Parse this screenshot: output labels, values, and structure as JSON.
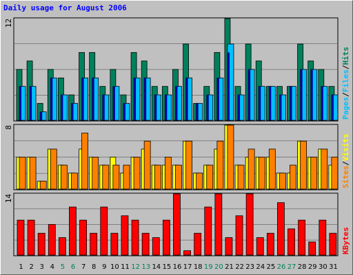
{
  "window": {
    "title": "Daily usage for August 2006"
  },
  "colors": {
    "hits": "#00805c",
    "files": "#00c0ff",
    "pages": "#00c0ff",
    "visits": "#ffff00",
    "sites": "#ff8000",
    "kbytes": "#ff0000",
    "weekend_label": "#00805c",
    "weekday_label": "#000000",
    "plot_bg": "#c0c0c0",
    "plot_border": "#000000"
  },
  "chart_data": [
    {
      "type": "bar",
      "panel": "top",
      "max_label": "12",
      "ylim": [
        0,
        12
      ],
      "legend": [
        "Pages",
        "/",
        "Files",
        "/",
        "Hits"
      ],
      "categories": [
        "1",
        "2",
        "3",
        "4",
        "5",
        "6",
        "7",
        "8",
        "9",
        "10",
        "11",
        "12",
        "13",
        "14",
        "15",
        "16",
        "17",
        "18",
        "19",
        "20",
        "21",
        "22",
        "23",
        "24",
        "25",
        "26",
        "27",
        "28",
        "29",
        "30",
        "31"
      ],
      "series": [
        {
          "name": "Hits",
          "values": [
            6,
            7,
            2,
            6,
            5,
            3,
            8,
            8,
            4,
            6,
            3,
            8,
            7,
            4,
            4,
            6,
            9,
            2,
            4,
            8,
            12,
            4,
            9,
            7,
            4,
            4,
            4,
            9,
            7,
            6,
            4
          ]
        },
        {
          "name": "Files",
          "values": [
            4,
            4,
            1,
            5,
            3,
            2,
            5,
            5,
            3,
            4,
            2,
            5,
            5,
            3,
            3,
            4,
            5,
            2,
            3,
            5,
            9,
            3,
            6,
            4,
            4,
            3,
            4,
            6,
            6,
            4,
            3
          ]
        },
        {
          "name": "Pages",
          "values": [
            4,
            4,
            1,
            5,
            3,
            2,
            5,
            5,
            3,
            4,
            2,
            5,
            5,
            3,
            3,
            4,
            5,
            2,
            3,
            5,
            8,
            3,
            6,
            4,
            4,
            3,
            4,
            6,
            6,
            4,
            3
          ]
        }
      ]
    },
    {
      "type": "bar",
      "panel": "middle",
      "max_label": "8",
      "ylim": [
        0,
        8
      ],
      "legend": [
        "Sites",
        "/",
        "Visits"
      ],
      "categories": [
        "1",
        "2",
        "3",
        "4",
        "5",
        "6",
        "7",
        "8",
        "9",
        "10",
        "11",
        "12",
        "13",
        "14",
        "15",
        "16",
        "17",
        "18",
        "19",
        "20",
        "21",
        "22",
        "23",
        "24",
        "25",
        "26",
        "27",
        "28",
        "29",
        "30",
        "31"
      ],
      "series": [
        {
          "name": "Visits",
          "values": [
            4,
            4,
            1,
            5,
            3,
            2,
            5,
            4,
            3,
            4,
            2,
            4,
            5,
            3,
            3,
            3,
            6,
            2,
            3,
            5,
            8,
            3,
            4,
            4,
            4,
            2,
            2,
            6,
            4,
            5,
            3
          ]
        },
        {
          "name": "Sites",
          "values": [
            4,
            4,
            1,
            5,
            3,
            2,
            7,
            4,
            3,
            3,
            3,
            4,
            6,
            3,
            4,
            3,
            6,
            2,
            3,
            6,
            8,
            3,
            5,
            4,
            5,
            2,
            3,
            6,
            4,
            5,
            4
          ]
        }
      ]
    },
    {
      "type": "bar",
      "panel": "bottom",
      "max_label": "14",
      "ylim": [
        0,
        14
      ],
      "legend": [
        "KBytes"
      ],
      "categories": [
        "1",
        "2",
        "3",
        "4",
        "5",
        "6",
        "7",
        "8",
        "9",
        "10",
        "11",
        "12",
        "13",
        "14",
        "15",
        "16",
        "17",
        "18",
        "19",
        "20",
        "21",
        "22",
        "23",
        "24",
        "25",
        "26",
        "27",
        "28",
        "29",
        "30",
        "31"
      ],
      "series": [
        {
          "name": "KBytes",
          "values": [
            8,
            8,
            5,
            7,
            4,
            11,
            8,
            5,
            11,
            5,
            9,
            8,
            5,
            4,
            8,
            14,
            1,
            5,
            11,
            14,
            4,
            9,
            14,
            4,
            5,
            12,
            6,
            8,
            3,
            8,
            5
          ]
        }
      ]
    }
  ],
  "days": [
    {
      "label": "1",
      "weekend": false
    },
    {
      "label": "2",
      "weekend": false
    },
    {
      "label": "3",
      "weekend": false
    },
    {
      "label": "4",
      "weekend": false
    },
    {
      "label": "5",
      "weekend": true
    },
    {
      "label": "6",
      "weekend": true
    },
    {
      "label": "7",
      "weekend": false
    },
    {
      "label": "8",
      "weekend": false
    },
    {
      "label": "9",
      "weekend": false
    },
    {
      "label": "10",
      "weekend": false
    },
    {
      "label": "11",
      "weekend": false
    },
    {
      "label": "12",
      "weekend": true
    },
    {
      "label": "13",
      "weekend": true
    },
    {
      "label": "14",
      "weekend": false
    },
    {
      "label": "15",
      "weekend": false
    },
    {
      "label": "16",
      "weekend": false
    },
    {
      "label": "17",
      "weekend": false
    },
    {
      "label": "18",
      "weekend": false
    },
    {
      "label": "19",
      "weekend": true
    },
    {
      "label": "20",
      "weekend": true
    },
    {
      "label": "21",
      "weekend": false
    },
    {
      "label": "22",
      "weekend": false
    },
    {
      "label": "23",
      "weekend": false
    },
    {
      "label": "24",
      "weekend": false
    },
    {
      "label": "25",
      "weekend": false
    },
    {
      "label": "26",
      "weekend": true
    },
    {
      "label": "27",
      "weekend": true
    },
    {
      "label": "28",
      "weekend": false
    },
    {
      "label": "29",
      "weekend": false
    },
    {
      "label": "30",
      "weekend": false
    },
    {
      "label": "31",
      "weekend": false
    }
  ]
}
